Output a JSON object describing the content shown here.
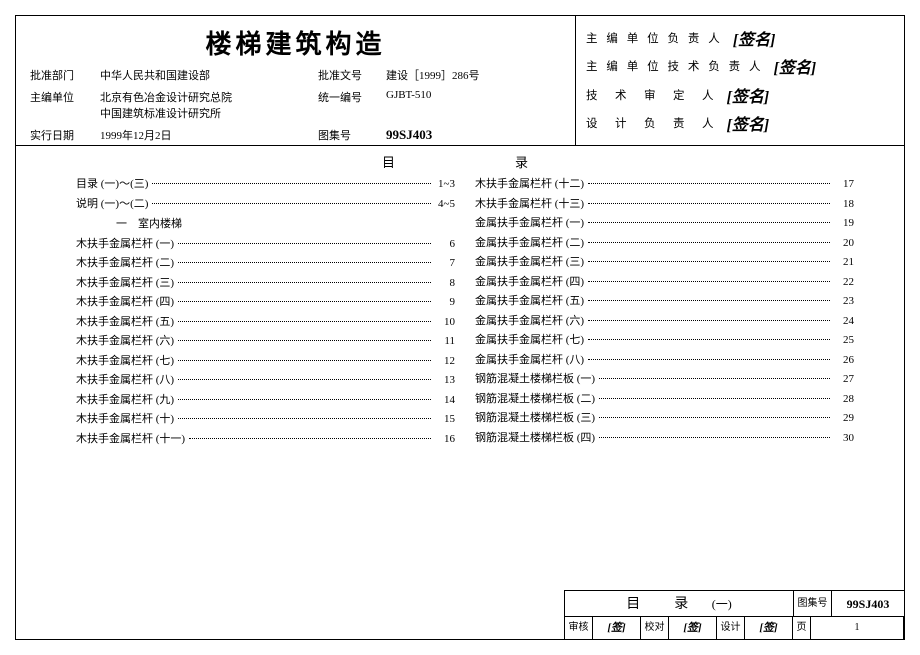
{
  "title": "楼梯建筑构造",
  "header": {
    "rows": [
      {
        "lab": "批准部门",
        "val": "中华人民共和国建设部",
        "lab2": "批准文号",
        "val2": "建设［1999］286号"
      },
      {
        "lab": "主编单位",
        "val": "北京有色冶金设计研究总院\n中国建筑标准设计研究所",
        "lab2": "统一编号",
        "val2": "GJBT-510"
      },
      {
        "lab": "实行日期",
        "val": "1999年12月2日",
        "lab2": "图集号",
        "val2": "99SJ403"
      }
    ]
  },
  "signers": [
    {
      "label": "主 编 单 位 负 责 人",
      "sig": "[签名]"
    },
    {
      "label": "主 编 单 位 技 术 负 责 人",
      "sig": "[签名]"
    },
    {
      "label": "技　术　审　定　人",
      "sig": "[签名]"
    },
    {
      "label": "设　计　负　责　人",
      "sig": "[签名]"
    }
  ],
  "toc_head_left": "目",
  "toc_head_right": "录",
  "col1": {
    "pre": [
      {
        "label": "目录 (一)～(三)",
        "page": "1~3"
      },
      {
        "label": "说明 (一)～(二)",
        "page": "4~5"
      }
    ],
    "section": "一　室内楼梯",
    "items": [
      {
        "label": "木扶手金属栏杆 (一)",
        "page": "6"
      },
      {
        "label": "木扶手金属栏杆 (二)",
        "page": "7"
      },
      {
        "label": "木扶手金属栏杆 (三)",
        "page": "8"
      },
      {
        "label": "木扶手金属栏杆 (四)",
        "page": "9"
      },
      {
        "label": "木扶手金属栏杆 (五)",
        "page": "10"
      },
      {
        "label": "木扶手金属栏杆 (六)",
        "page": "11"
      },
      {
        "label": "木扶手金属栏杆 (七)",
        "page": "12"
      },
      {
        "label": "木扶手金属栏杆 (八)",
        "page": "13"
      },
      {
        "label": "木扶手金属栏杆 (九)",
        "page": "14"
      },
      {
        "label": "木扶手金属栏杆 (十)",
        "page": "15"
      },
      {
        "label": "木扶手金属栏杆 (十一)",
        "page": "16"
      }
    ]
  },
  "col2": {
    "items": [
      {
        "label": "木扶手金属栏杆 (十二)",
        "page": "17"
      },
      {
        "label": "木扶手金属栏杆 (十三)",
        "page": "18"
      },
      {
        "label": "金属扶手金属栏杆 (一)",
        "page": "19"
      },
      {
        "label": "金属扶手金属栏杆 (二)",
        "page": "20"
      },
      {
        "label": "金属扶手金属栏杆 (三)",
        "page": "21"
      },
      {
        "label": "金属扶手金属栏杆 (四)",
        "page": "22"
      },
      {
        "label": "金属扶手金属栏杆 (五)",
        "page": "23"
      },
      {
        "label": "金属扶手金属栏杆 (六)",
        "page": "24"
      },
      {
        "label": "金属扶手金属栏杆 (七)",
        "page": "25"
      },
      {
        "label": "金属扶手金属栏杆 (八)",
        "page": "26"
      },
      {
        "label": "钢筋混凝土楼梯栏板 (一)",
        "page": "27"
      },
      {
        "label": "钢筋混凝土楼梯栏板 (二)",
        "page": "28"
      },
      {
        "label": "钢筋混凝土楼梯栏板 (三)",
        "page": "29"
      },
      {
        "label": "钢筋混凝土楼梯栏板 (四)",
        "page": "30"
      }
    ]
  },
  "footer": {
    "title": "目　录",
    "suffix": "(一)",
    "atlas_lab": "图集号",
    "atlas_no": "99SJ403",
    "review_lab": "审核",
    "review_sig": "[签]",
    "check_lab": "校对",
    "check_sig": "[签]",
    "design_lab": "设计",
    "design_sig": "[签]",
    "page_lab": "页",
    "page_no": "1"
  }
}
